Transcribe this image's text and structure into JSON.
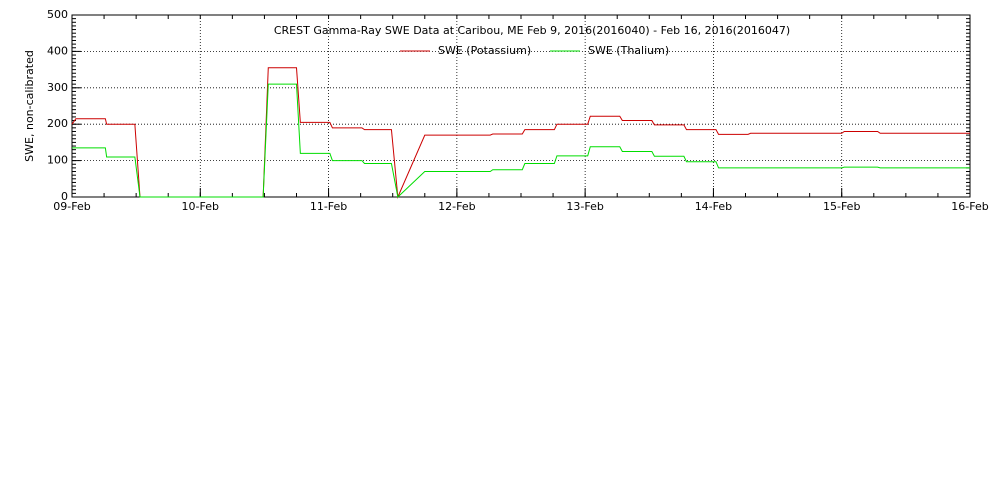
{
  "chart_data": {
    "type": "line",
    "title": "CREST Gamma-Ray SWE Data at Caribou, ME   Feb  9, 2016(2016040) - Feb 16, 2016(2016047)",
    "y_label": "SWE, non-calibrated",
    "x": [
      0,
      0.03,
      0.26,
      0.27,
      0.49,
      0.53,
      1.49,
      1.53,
      1.75,
      1.78,
      2.01,
      2.03,
      2.26,
      2.28,
      2.49,
      2.54,
      2.75,
      2.78,
      3.26,
      3.28,
      3.51,
      3.53,
      3.76,
      3.78,
      4.02,
      4.04,
      4.27,
      4.29,
      4.52,
      4.54,
      4.77,
      4.79,
      5.02,
      5.04,
      5.27,
      5.29,
      6.0,
      6.02,
      6.28,
      6.3,
      7.0
    ],
    "series": [
      {
        "name": "SWE (Potassium)",
        "color": "#cc0000",
        "values": [
          200,
          215,
          215,
          200,
          200,
          0,
          0,
          355,
          355,
          205,
          205,
          190,
          190,
          185,
          185,
          0,
          170,
          170,
          170,
          173,
          173,
          185,
          185,
          200,
          200,
          222,
          222,
          210,
          210,
          198,
          198,
          185,
          185,
          172,
          172,
          175,
          175,
          180,
          180,
          175,
          175
        ]
      },
      {
        "name": "SWE (Thalium)",
        "color": "#00dd00",
        "values": [
          135,
          135,
          135,
          110,
          110,
          0,
          0,
          310,
          310,
          120,
          120,
          100,
          100,
          92,
          92,
          0,
          70,
          70,
          70,
          75,
          75,
          92,
          92,
          113,
          113,
          138,
          138,
          125,
          125,
          112,
          112,
          97,
          97,
          80,
          80,
          80,
          80,
          82,
          82,
          80,
          80
        ]
      }
    ],
    "xlim": [
      0,
      7
    ],
    "xticks": [
      {
        "value": 0,
        "label": "09-Feb"
      },
      {
        "value": 1,
        "label": "10-Feb"
      },
      {
        "value": 2,
        "label": "11-Feb"
      },
      {
        "value": 3,
        "label": "12-Feb"
      },
      {
        "value": 4,
        "label": "13-Feb"
      },
      {
        "value": 5,
        "label": "14-Feb"
      },
      {
        "value": 6,
        "label": "15-Feb"
      },
      {
        "value": 7,
        "label": "16-Feb"
      }
    ],
    "ylim": [
      0,
      500
    ],
    "yticks": [
      0,
      100,
      200,
      300,
      400,
      500
    ],
    "grid": true
  }
}
